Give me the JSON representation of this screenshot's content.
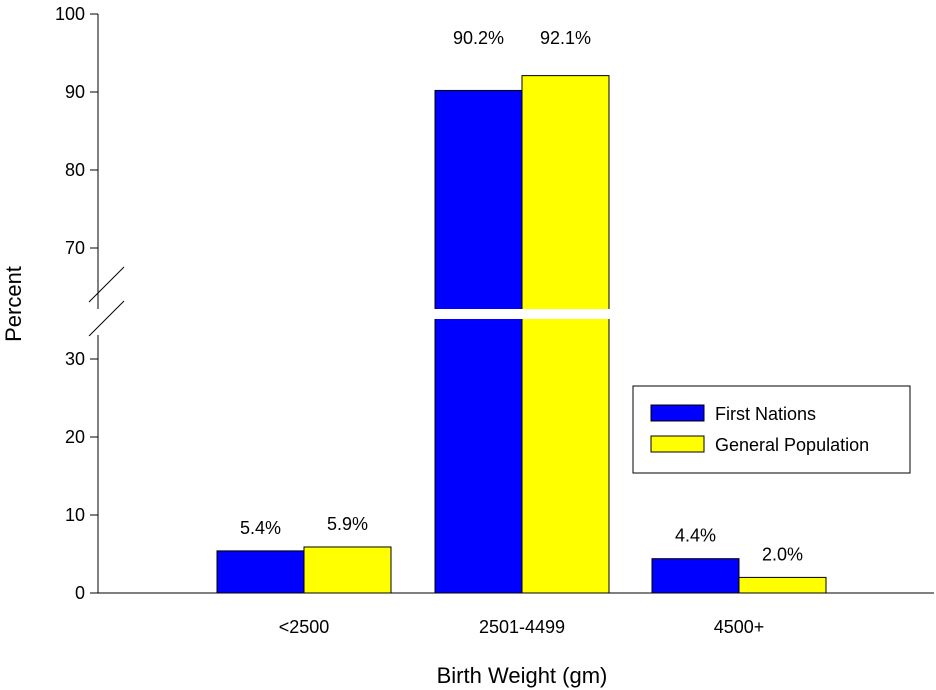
{
  "chart_data": {
    "type": "bar",
    "xlabel": "Birth Weight (gm)",
    "ylabel": "Percent",
    "categories": [
      "<2500",
      "2501-4499",
      "4500+"
    ],
    "series": [
      {
        "name": "First Nations",
        "values": [
          5.4,
          90.2,
          4.4
        ],
        "labels": [
          "5.4%",
          "90.2%",
          "4.4%"
        ],
        "color": "#0000ff"
      },
      {
        "name": "General Population",
        "values": [
          5.9,
          92.1,
          2.0
        ],
        "labels": [
          "5.9%",
          "92.1%",
          "2.0%"
        ],
        "color": "#ffff00"
      }
    ],
    "y_axis": {
      "broken": true,
      "lower_segment": [
        0,
        35
      ],
      "upper_segment": [
        65,
        100
      ],
      "lower_ticks": [
        0,
        10,
        20,
        30
      ],
      "upper_ticks": [
        70,
        80,
        90,
        100
      ]
    },
    "grid": false,
    "legend_position": "right"
  }
}
